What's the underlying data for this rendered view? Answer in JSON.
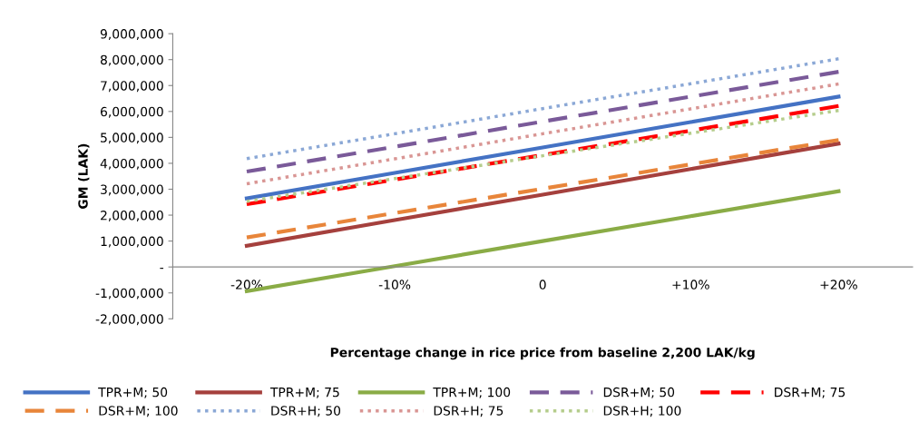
{
  "chart_data": {
    "type": "line",
    "xlabel": "Percentage change in rice price from baseline 2,200 LAK/kg",
    "ylabel": "GM (LAK)",
    "categories": [
      "-20%",
      "-10%",
      "0",
      "+10%",
      "+20%"
    ],
    "ylim": [
      -2000000,
      9000000
    ],
    "yticks": [
      {
        "value": -2000000,
        "label": "-2,000,000"
      },
      {
        "value": -1000000,
        "label": "-1,000,000"
      },
      {
        "value": 0,
        "label": "-"
      },
      {
        "value": 1000000,
        "label": "1,000,000"
      },
      {
        "value": 2000000,
        "label": "2,000,000"
      },
      {
        "value": 3000000,
        "label": "3,000,000"
      },
      {
        "value": 4000000,
        "label": "4,000,000"
      },
      {
        "value": 5000000,
        "label": "5,000,000"
      },
      {
        "value": 6000000,
        "label": "6,000,000"
      },
      {
        "value": 7000000,
        "label": "7,000,000"
      },
      {
        "value": 8000000,
        "label": "8,000,000"
      },
      {
        "value": 9000000,
        "label": "9,000,000"
      }
    ],
    "grid": false,
    "legend": "bottom",
    "marker": "none",
    "series": [
      {
        "name": "TPR+M; 50",
        "color": "#4472c4",
        "line_style": "solid",
        "values": [
          2650000,
          3630000,
          4610000,
          5590000,
          6570000
        ]
      },
      {
        "name": "TPR+M; 75",
        "color": "#a5403d",
        "line_style": "solid",
        "values": [
          820000,
          1810000,
          2790000,
          3780000,
          4760000
        ]
      },
      {
        "name": "TPR+M; 100",
        "color": "#8aac46",
        "line_style": "solid",
        "values": [
          -930000,
          30000,
          1000000,
          1960000,
          2920000
        ]
      },
      {
        "name": "DSR+M; 50",
        "color": "#7a5a99",
        "line_style": "dashed",
        "values": [
          3680000,
          4640000,
          5610000,
          6570000,
          7530000
        ]
      },
      {
        "name": "DSR+M; 75",
        "color": "#ff0000",
        "line_style": "dashed",
        "values": [
          2420000,
          3370000,
          4320000,
          5260000,
          6210000
        ]
      },
      {
        "name": "DSR+M; 100",
        "color": "#e8853a",
        "line_style": "dashed",
        "values": [
          1140000,
          2080000,
          3020000,
          3960000,
          4900000
        ]
      },
      {
        "name": "DSR+H; 50",
        "color": "#8ba8d6",
        "line_style": "dotted",
        "values": [
          4180000,
          5140000,
          6110000,
          7070000,
          8030000
        ]
      },
      {
        "name": "DSR+H; 75",
        "color": "#d99694",
        "line_style": "dotted",
        "values": [
          3210000,
          4170000,
          5140000,
          6100000,
          7060000
        ]
      },
      {
        "name": "DSR+H; 100",
        "color": "#b5cd8c",
        "line_style": "dotted",
        "values": [
          2530000,
          3410000,
          4290000,
          5160000,
          6040000
        ]
      }
    ]
  }
}
